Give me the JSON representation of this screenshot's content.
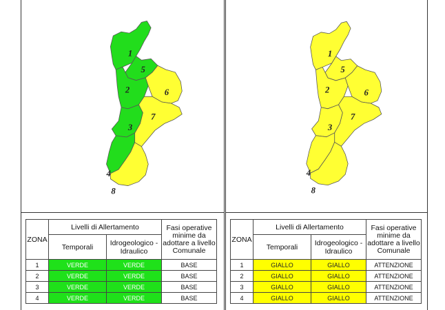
{
  "panels": [
    {
      "id": "left",
      "colors": {
        "1": "#22dd1c",
        "2": "#22dd1c",
        "3": "#22dd1c",
        "4": "#22dd1c",
        "5": "#22dd1c",
        "6": "#ffff33",
        "7": "#ffff33",
        "8": "#ffff33"
      },
      "zone_labels": [
        "1",
        "2",
        "3",
        "4",
        "5",
        "6",
        "7",
        "8"
      ],
      "table": {
        "zona_header": "ZONA",
        "livelli_header": "Livelli di Allertamento",
        "temporali_header": "Temporali",
        "idro_header": "Idrogeologico - Idraulico",
        "fasi_header": "Fasi operative minime da adottare a livello Comunale",
        "rows": [
          {
            "zona": "1",
            "temporali": "VERDE",
            "idro": "VERDE",
            "fasi": "BASE"
          },
          {
            "zona": "2",
            "temporali": "VERDE",
            "idro": "VERDE",
            "fasi": "BASE"
          },
          {
            "zona": "3",
            "temporali": "VERDE",
            "idro": "VERDE",
            "fasi": "BASE"
          },
          {
            "zona": "4",
            "temporali": "VERDE",
            "idro": "VERDE",
            "fasi": "BASE"
          }
        ],
        "level_color": "#1fe11a"
      }
    },
    {
      "id": "right",
      "colors": {
        "1": "#ffff33",
        "2": "#ffff33",
        "3": "#ffff33",
        "4": "#ffff33",
        "5": "#ffff33",
        "6": "#ffff33",
        "7": "#ffff33",
        "8": "#ffff33"
      },
      "zone_labels": [
        "1",
        "2",
        "3",
        "4",
        "5",
        "6",
        "7",
        "8"
      ],
      "table": {
        "zona_header": "ZONA",
        "livelli_header": "Livelli di Allertamento",
        "temporali_header": "Temporali",
        "idro_header": "Idrogeologico - Idraulico",
        "fasi_header": "Fasi operative minime da adottare a livello Comunale",
        "rows": [
          {
            "zona": "1",
            "temporali": "GIALLO",
            "idro": "GIALLO",
            "fasi": "ATTENZIONE"
          },
          {
            "zona": "2",
            "temporali": "GIALLO",
            "idro": "GIALLO",
            "fasi": "ATTENZIONE"
          },
          {
            "zona": "3",
            "temporali": "GIALLO",
            "idro": "GIALLO",
            "fasi": "ATTENZIONE"
          },
          {
            "zona": "4",
            "temporali": "GIALLO",
            "idro": "GIALLO",
            "fasi": "ATTENZIONE"
          }
        ],
        "level_color": "#ffff00"
      }
    }
  ]
}
